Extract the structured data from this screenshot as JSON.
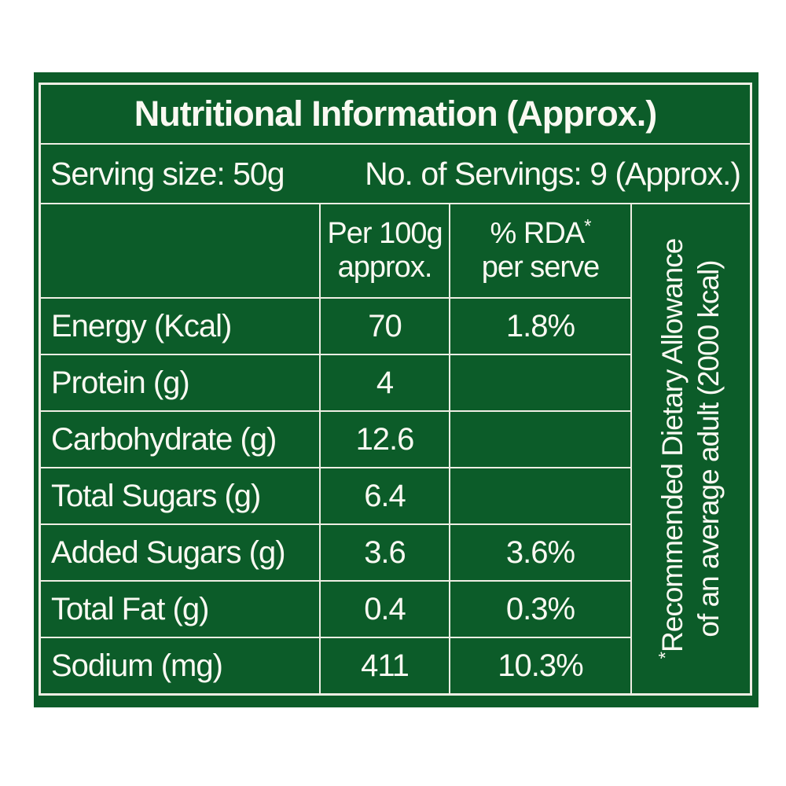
{
  "colors": {
    "panel_green": "#0c5c29",
    "grid_line": "#efeee4",
    "text": "#faf9f2",
    "page_background": "#ffffff"
  },
  "title": "Nutritional Information (Approx.)",
  "serving": {
    "size_text": "Serving size: 50g",
    "count_text": "No. of Servings: 9 (Approx.)"
  },
  "table": {
    "col_headers": {
      "per100_line1": "Per 100g",
      "per100_line2": "approx.",
      "rda_line1": "% RDA",
      "rda_asterisk": "*",
      "rda_line2": "per serve"
    },
    "rows": [
      {
        "label": "Energy (Kcal)",
        "per100": "70",
        "rda": "1.8%"
      },
      {
        "label": "Protein (g)",
        "per100": "4",
        "rda": ""
      },
      {
        "label": "Carbohydrate (g)",
        "per100": "12.6",
        "rda": ""
      },
      {
        "label": "Total Sugars (g)",
        "per100": "6.4",
        "rda": ""
      },
      {
        "label": "Added Sugars (g)",
        "per100": "3.6",
        "rda": "3.6%"
      },
      {
        "label": "Total Fat (g)",
        "per100": "0.4",
        "rda": "0.3%"
      },
      {
        "label": "Sodium (mg)",
        "per100": "411",
        "rda": "10.3%"
      }
    ],
    "footnote": {
      "asterisk": "*",
      "line1": "Recommended Dietary Allowance",
      "line2": "of an average adult (2000 kcal)"
    }
  }
}
